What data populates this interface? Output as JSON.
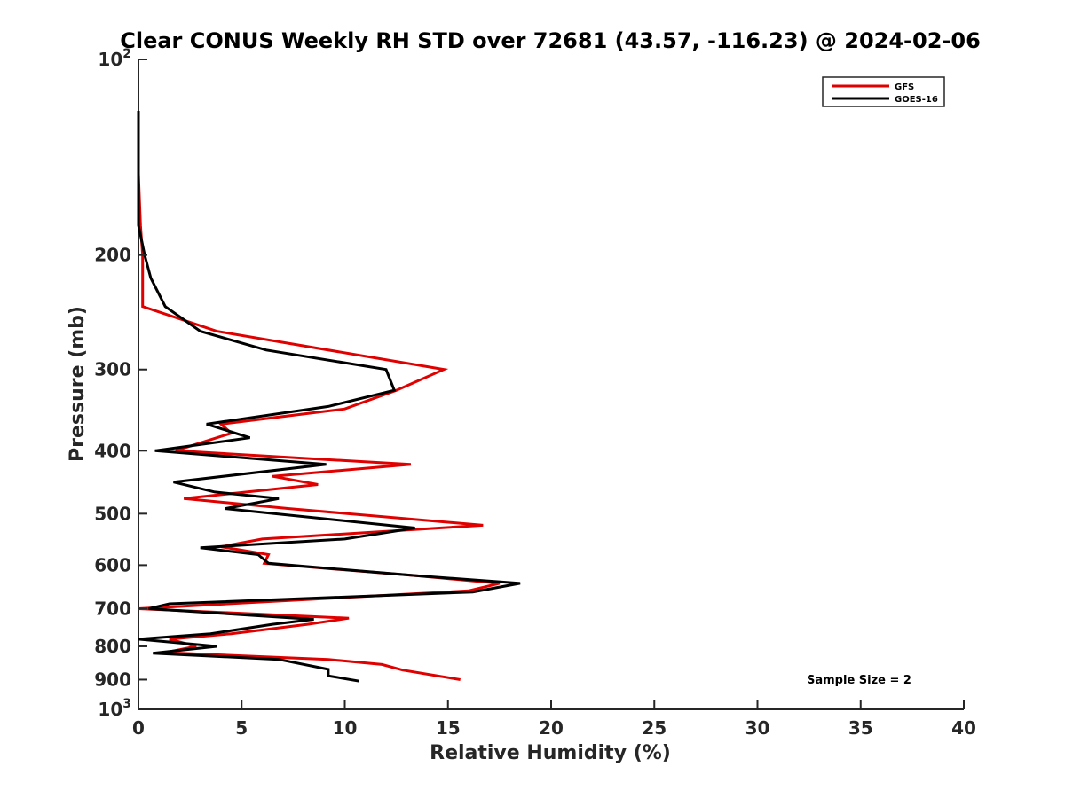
{
  "chart_data": {
    "type": "line",
    "title": "Clear CONUS Weekly RH STD over 72681 (43.57, -116.23) @ 2024-02-06",
    "xlabel": "Relative Humidity (%)",
    "ylabel": "Pressure (mb)",
    "xlim": [
      0,
      40
    ],
    "ylim": [
      100,
      1000
    ],
    "y_scale": "log",
    "y_reversed": true,
    "grid": false,
    "legend_position": "top-right",
    "x_ticks": [
      "0",
      "5",
      "10",
      "15",
      "20",
      "25",
      "30",
      "35",
      "40"
    ],
    "y_ticks": [
      {
        "value": 100,
        "base": "10",
        "exp": "2"
      },
      {
        "value": 200,
        "label": "200"
      },
      {
        "value": 300,
        "label": "300"
      },
      {
        "value": 400,
        "label": "400"
      },
      {
        "value": 500,
        "label": "500"
      },
      {
        "value": 600,
        "label": "600"
      },
      {
        "value": 700,
        "label": "700"
      },
      {
        "value": 800,
        "label": "800"
      },
      {
        "value": 900,
        "label": "900"
      },
      {
        "value": 1000,
        "base": "10",
        "exp": "3"
      }
    ],
    "annotation": "Sample Size = 2",
    "series": [
      {
        "name": "GFS",
        "color": "#e00000",
        "points": [
          [
            0.0,
            120
          ],
          [
            0.0,
            150
          ],
          [
            0.1,
            180
          ],
          [
            0.2,
            200
          ],
          [
            0.2,
            220
          ],
          [
            0.2,
            240
          ],
          [
            3.8,
            262
          ],
          [
            14.8,
            300
          ],
          [
            12.5,
            323
          ],
          [
            10.0,
            345
          ],
          [
            4.0,
            364
          ],
          [
            4.5,
            376
          ],
          [
            1.8,
            400
          ],
          [
            13.2,
            420
          ],
          [
            6.5,
            438
          ],
          [
            8.7,
            451
          ],
          [
            2.2,
            474
          ],
          [
            7.3,
            491
          ],
          [
            16.7,
            521
          ],
          [
            6.0,
            547
          ],
          [
            4.0,
            562
          ],
          [
            6.3,
            578
          ],
          [
            6.1,
            596
          ],
          [
            13.5,
            623
          ],
          [
            17.5,
            640
          ],
          [
            16.0,
            657
          ],
          [
            0.0,
            700
          ],
          [
            10.2,
            724
          ],
          [
            8.2,
            740
          ],
          [
            4.5,
            765
          ],
          [
            1.5,
            780
          ],
          [
            2.8,
            800
          ],
          [
            1.3,
            818
          ],
          [
            9.2,
            838
          ],
          [
            11.8,
            853
          ],
          [
            12.8,
            870
          ],
          [
            15.6,
            900
          ]
        ]
      },
      {
        "name": "GOES-16",
        "color": "#000000",
        "points": [
          [
            0.0,
            120
          ],
          [
            0.0,
            150
          ],
          [
            0.0,
            180
          ],
          [
            0.3,
            200
          ],
          [
            0.6,
            217
          ],
          [
            1.3,
            240
          ],
          [
            3.0,
            262
          ],
          [
            6.2,
            280
          ],
          [
            12.0,
            300
          ],
          [
            12.4,
            323
          ],
          [
            9.2,
            342
          ],
          [
            3.3,
            364
          ],
          [
            5.4,
            382
          ],
          [
            0.8,
            400
          ],
          [
            9.1,
            420
          ],
          [
            1.7,
            447
          ],
          [
            3.7,
            463
          ],
          [
            6.8,
            474
          ],
          [
            4.2,
            491
          ],
          [
            13.4,
            526
          ],
          [
            10.0,
            547
          ],
          [
            3.0,
            564
          ],
          [
            5.8,
            578
          ],
          [
            6.3,
            596
          ],
          [
            13.8,
            624
          ],
          [
            18.5,
            640
          ],
          [
            16.2,
            660
          ],
          [
            1.5,
            688
          ],
          [
            0.5,
            700
          ],
          [
            8.5,
            727
          ],
          [
            6.5,
            740
          ],
          [
            3.5,
            765
          ],
          [
            0.0,
            780
          ],
          [
            3.8,
            800
          ],
          [
            0.7,
            820
          ],
          [
            6.8,
            838
          ],
          [
            9.2,
            868
          ],
          [
            9.2,
            888
          ],
          [
            10.7,
            905
          ]
        ]
      }
    ]
  }
}
